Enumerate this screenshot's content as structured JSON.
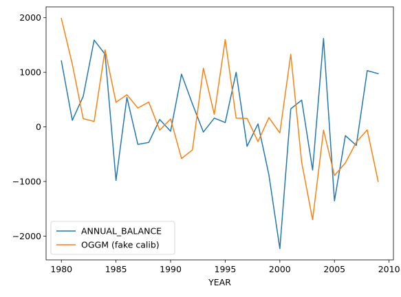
{
  "chart_data": {
    "type": "line",
    "title": "",
    "xlabel": "YEAR",
    "ylabel": "",
    "xlim": [
      1978.6,
      2010.4
    ],
    "ylim": [
      -2436,
      2198
    ],
    "x_ticks": [
      1980,
      1985,
      1990,
      1995,
      2000,
      2005,
      2010
    ],
    "x_tick_labels": [
      "1980",
      "1985",
      "1990",
      "1995",
      "2000",
      "2005",
      "2010"
    ],
    "y_ticks": [
      -2000,
      -1000,
      0,
      1000,
      2000
    ],
    "y_tick_labels": [
      "−2000",
      "−1000",
      "0",
      "1000",
      "2000"
    ],
    "grid": false,
    "legend_position": "lower-left",
    "x": [
      1980,
      1981,
      1982,
      1983,
      1984,
      1985,
      1986,
      1987,
      1988,
      1989,
      1990,
      1991,
      1992,
      1993,
      1994,
      1995,
      1996,
      1997,
      1998,
      1999,
      2000,
      2001,
      2002,
      2003,
      2004,
      2005,
      2006,
      2007,
      2008,
      2009
    ],
    "series": [
      {
        "name": "ANNUAL_BALANCE",
        "color": "#1f77b4",
        "values": [
          1210,
          120,
          560,
          1590,
          1330,
          -980,
          540,
          -320,
          -285,
          135,
          -80,
          965,
          420,
          -95,
          160,
          80,
          1000,
          -355,
          55,
          -880,
          -2230,
          330,
          490,
          -790,
          1620,
          -1355,
          -160,
          -340,
          1030,
          975
        ]
      },
      {
        "name": "OGGM (fake calib)",
        "color": "#ff7f0e",
        "values": [
          1985,
          1150,
          150,
          100,
          1410,
          450,
          590,
          345,
          455,
          -60,
          145,
          -580,
          -420,
          1075,
          230,
          1600,
          160,
          155,
          -270,
          170,
          -110,
          1330,
          -650,
          -1700,
          -60,
          -890,
          -660,
          -280,
          -55,
          -1000
        ]
      }
    ]
  }
}
